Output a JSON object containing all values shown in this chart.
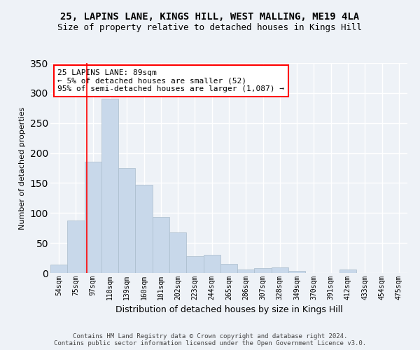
{
  "title_line1": "25, LAPINS LANE, KINGS HILL, WEST MALLING, ME19 4LA",
  "title_line2": "Size of property relative to detached houses in Kings Hill",
  "xlabel": "Distribution of detached houses by size in Kings Hill",
  "ylabel": "Number of detached properties",
  "bar_color": "#c8d8ea",
  "bar_edge_color": "#aabccc",
  "background_color": "#eef2f7",
  "grid_color": "#ffffff",
  "annotation_box_text": "25 LAPINS LANE: 89sqm\n← 5% of detached houses are smaller (52)\n95% of semi-detached houses are larger (1,087) →",
  "footer_line1": "Contains HM Land Registry data © Crown copyright and database right 2024.",
  "footer_line2": "Contains public sector information licensed under the Open Government Licence v3.0.",
  "categories": [
    "54sqm",
    "75sqm",
    "97sqm",
    "118sqm",
    "139sqm",
    "160sqm",
    "181sqm",
    "202sqm",
    "223sqm",
    "244sqm",
    "265sqm",
    "286sqm",
    "307sqm",
    "328sqm",
    "349sqm",
    "370sqm",
    "391sqm",
    "412sqm",
    "433sqm",
    "454sqm",
    "475sqm"
  ],
  "values": [
    14,
    88,
    185,
    290,
    175,
    147,
    93,
    68,
    28,
    30,
    15,
    6,
    8,
    9,
    3,
    0,
    0,
    6,
    0,
    0,
    0
  ],
  "ylim": [
    0,
    350
  ],
  "yticks": [
    0,
    50,
    100,
    150,
    200,
    250,
    300,
    350
  ],
  "title1_fontsize": 10,
  "title2_fontsize": 9,
  "ylabel_fontsize": 8,
  "xlabel_fontsize": 9,
  "tick_fontsize": 7,
  "footer_fontsize": 6.5,
  "ann_fontsize": 8
}
